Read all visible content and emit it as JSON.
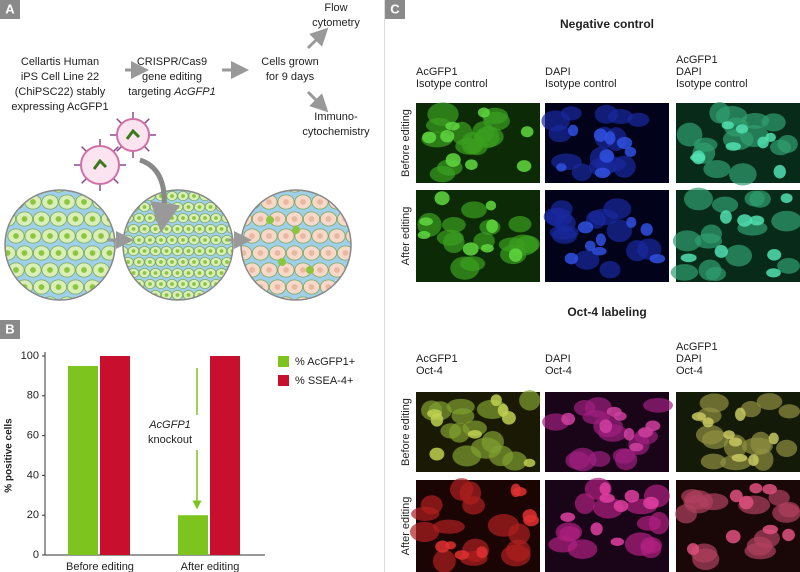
{
  "panel_labels": [
    "A",
    "B",
    "C"
  ],
  "panel_a": {
    "steps": [
      {
        "lines": [
          [
            "Cellartis Human"
          ],
          [
            "iPS Cell Line 22"
          ],
          [
            "(ChiPSC22) stably"
          ],
          [
            "expressing AcGFP1"
          ]
        ]
      },
      {
        "lines": [
          [
            "CRISPR/Cas9"
          ],
          [
            "gene editing"
          ],
          [
            "targeting ",
            "AcGFP1"
          ]
        ]
      },
      {
        "lines": [
          [
            "Cells grown"
          ],
          [
            "for 9 days"
          ]
        ]
      }
    ],
    "outcomes": [
      {
        "lines": [
          "Flow",
          "cytometry"
        ]
      },
      {
        "lines": [
          "Immuno-",
          "cytochemistry"
        ]
      }
    ]
  },
  "chart_data": {
    "type": "bar",
    "categories": [
      "Before editing",
      "After editing"
    ],
    "series": [
      {
        "name": "% AcGFP1+",
        "color": "#7dc41f",
        "values": [
          95,
          20
        ]
      },
      {
        "name": "% SSEA-4+",
        "color": "#c8102e",
        "values": [
          100,
          100
        ]
      }
    ],
    "ylim": [
      0,
      100
    ],
    "yticks": [
      0,
      20,
      40,
      60,
      80,
      100
    ],
    "y_label": "% positive cells",
    "annotation": [
      "AcGFP1",
      "knockout"
    ],
    "annotation_color": "#7dc41f",
    "legend": "top-right"
  },
  "panel_c": {
    "sections": [
      {
        "title": "Negative control",
        "columns": [
          [
            {
              "text": "AcGFP1",
              "color": "#6cc01c"
            },
            {
              "text": "Isotype control",
              "color": "#d0102e"
            }
          ],
          [
            {
              "text": "DAPI",
              "color": "#2060d0"
            },
            {
              "text": "Isotype control",
              "color": "#d0102e"
            }
          ],
          [
            {
              "text": "AcGFP1",
              "color": "#6cc01c"
            },
            {
              "text": "DAPI",
              "color": "#2060d0"
            },
            {
              "text": "Isotype control",
              "color": "#d0102e"
            }
          ]
        ],
        "rows": [
          "Before editing",
          "After editing"
        ]
      },
      {
        "title": "Oct-4 labeling",
        "columns": [
          [
            {
              "text": "AcGFP1",
              "color": "#6cc01c"
            },
            {
              "text": "Oct-4",
              "color": "#d0102e"
            }
          ],
          [
            {
              "text": "DAPI",
              "color": "#2060d0"
            },
            {
              "text": "Oct-4",
              "color": "#d0102e"
            }
          ],
          [
            {
              "text": "AcGFP1",
              "color": "#6cc01c"
            },
            {
              "text": "DAPI",
              "color": "#2060d0"
            },
            {
              "text": "Oct-4",
              "color": "#d0102e"
            }
          ]
        ],
        "rows": [
          "Before editing",
          "After editing"
        ]
      }
    ]
  }
}
